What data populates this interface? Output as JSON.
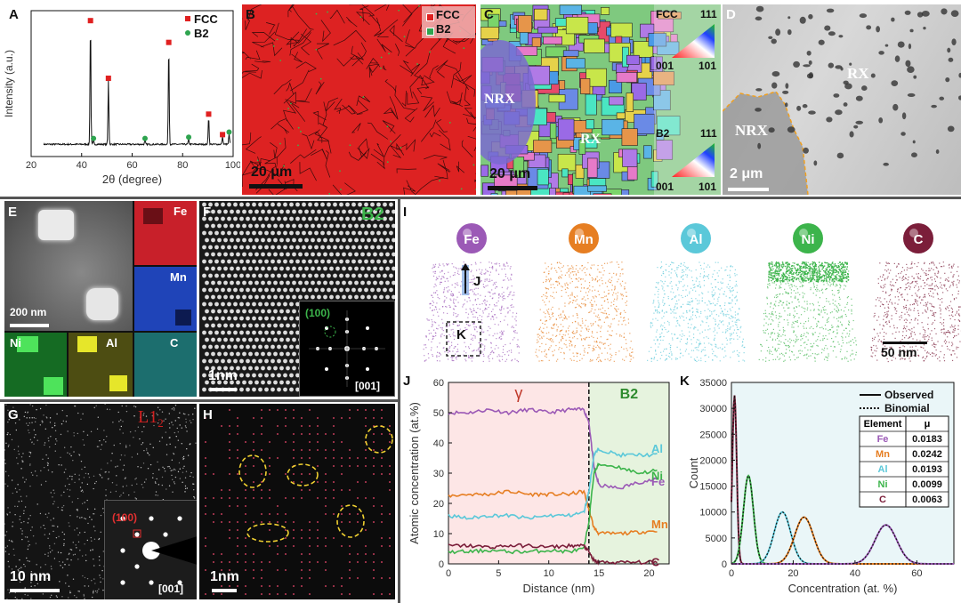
{
  "labels": {
    "A": "A",
    "B": "B",
    "C": "C",
    "D": "D",
    "E": "E",
    "F": "F",
    "G": "G",
    "H": "H",
    "I": "I",
    "J": "J",
    "K": "K"
  },
  "colors": {
    "fcc": "#e02020",
    "b2": "#2ea44f",
    "fe": "#9b59b6",
    "mn": "#e67e22",
    "al": "#5bc8d9",
    "ni": "#3cb44b",
    "c": "#7b1e3a"
  },
  "panel_b": {
    "legend": [
      "FCC",
      "B2"
    ],
    "scale": "20 μm"
  },
  "panel_c": {
    "nrx": "NRX",
    "rx": "RX",
    "fcc": "FCC",
    "b2": "B2",
    "ipf_top": "111",
    "ipf_left": "001",
    "ipf_right": "101",
    "scale": "20 μm"
  },
  "panel_d": {
    "rx": "RX",
    "nrx": "NRX",
    "scale": "2 μm"
  },
  "panel_e": {
    "scale": "200 nm",
    "elements": [
      "Fe",
      "Mn",
      "Ni",
      "Al",
      "C"
    ]
  },
  "panel_f": {
    "phase": "B2",
    "spot": "(100)",
    "zone": "[001]",
    "scale": "1nm"
  },
  "panel_g": {
    "phase": "L1",
    "phase_sub": "2",
    "spot": "(100)",
    "zone": "[001]",
    "scale": "10 nm"
  },
  "panel_h": {
    "scale": "1nm"
  },
  "panel_i": {
    "elements": [
      "Fe",
      "Mn",
      "Al",
      "Ni",
      "C"
    ],
    "arrow_label": "J",
    "box_label": "K",
    "scale": "50 nm"
  },
  "chart_data": [
    {
      "panel": "A",
      "type": "line",
      "xlabel": "2θ (degree)",
      "ylabel": "Intensity (a.u.)",
      "xlim": [
        20,
        100
      ],
      "xticks": [
        20,
        40,
        60,
        80,
        100
      ],
      "legend": [
        "FCC",
        "B2"
      ],
      "legend_position": "top-right",
      "fcc_peaks": [
        {
          "x": 43.5,
          "y": 0.95
        },
        {
          "x": 50.6,
          "y": 0.5
        },
        {
          "x": 74.5,
          "y": 0.78
        },
        {
          "x": 90.3,
          "y": 0.22
        },
        {
          "x": 95.8,
          "y": 0.06
        }
      ],
      "b2_peaks": [
        {
          "x": 44.7,
          "y": 0.03
        },
        {
          "x": 65.1,
          "y": 0.03
        },
        {
          "x": 82.4,
          "y": 0.04
        },
        {
          "x": 98.4,
          "y": 0.08
        }
      ]
    },
    {
      "panel": "J",
      "type": "line",
      "xlabel": "Distance (nm)",
      "ylabel": "Atomic concentration (at.%)",
      "xlim": [
        0,
        22
      ],
      "ylim": [
        0,
        60
      ],
      "xticks": [
        0,
        5,
        10,
        15,
        20
      ],
      "yticks": [
        0,
        10,
        20,
        30,
        40,
        50,
        60
      ],
      "regions": [
        {
          "label": "γ",
          "from": 0,
          "to": 14
        },
        {
          "label": "B2",
          "from": 14,
          "to": 22
        }
      ],
      "interface": 14,
      "series": [
        {
          "name": "Fe",
          "color": "#9b59b6",
          "x": [
            0,
            2,
            4,
            6,
            8,
            10,
            12,
            13.5,
            14,
            14.5,
            15,
            17,
            19,
            21
          ],
          "y": [
            50,
            50,
            51,
            50,
            51,
            50,
            51,
            51,
            47,
            32,
            26,
            25,
            27,
            28
          ]
        },
        {
          "name": "Mn",
          "color": "#e67e22",
          "x": [
            0,
            2,
            4,
            6,
            8,
            10,
            12,
            13.5,
            14,
            14.5,
            15,
            17,
            19,
            21
          ],
          "y": [
            22.5,
            23,
            23,
            24,
            23,
            23,
            23,
            24,
            18,
            12,
            10,
            10,
            10.5,
            11
          ]
        },
        {
          "name": "Al",
          "color": "#5bc8d9",
          "x": [
            0,
            2,
            4,
            6,
            8,
            10,
            12,
            13.5,
            14,
            14.5,
            15,
            17,
            19,
            21
          ],
          "y": [
            16,
            15,
            16,
            16,
            15,
            16,
            16,
            17,
            24,
            36,
            38,
            36,
            36,
            36
          ]
        },
        {
          "name": "Ni",
          "color": "#3cb44b",
          "x": [
            0,
            2,
            4,
            6,
            8,
            10,
            12,
            13.5,
            14,
            14.5,
            15,
            17,
            19,
            21
          ],
          "y": [
            4,
            4,
            4.5,
            4,
            4,
            4.5,
            4,
            5,
            14,
            30,
            33,
            32,
            30,
            31
          ]
        },
        {
          "name": "C",
          "color": "#7b1e3a",
          "x": [
            0,
            2,
            4,
            6,
            8,
            10,
            12,
            13.5,
            14,
            14.5,
            15,
            17,
            19,
            21
          ],
          "y": [
            6,
            6,
            5.5,
            6,
            6,
            5.5,
            6,
            6,
            4,
            1,
            0.5,
            0.5,
            0.5,
            0.5
          ]
        }
      ]
    },
    {
      "panel": "K",
      "type": "line",
      "xlabel": "Concentration (at. %)",
      "ylabel": "Count",
      "xlim": [
        0,
        72
      ],
      "ylim": [
        0,
        35000
      ],
      "xticks": [
        0,
        20,
        40,
        60
      ],
      "yticks": [
        0,
        5000,
        10000,
        15000,
        20000,
        25000,
        30000,
        35000
      ],
      "legend": [
        {
          "name": "Observed",
          "style": "solid"
        },
        {
          "name": "Binomial",
          "style": "dotted"
        }
      ],
      "table_header": [
        "Element",
        "μ"
      ],
      "table_rows": [
        [
          "Fe",
          "0.0183"
        ],
        [
          "Mn",
          "0.0242"
        ],
        [
          "Al",
          "0.0193"
        ],
        [
          "Ni",
          "0.0099"
        ],
        [
          "C",
          "0.0063"
        ]
      ],
      "series": [
        {
          "name": "C",
          "color": "#7b1e3a",
          "peak_x": 1.0,
          "peak_y": 32500,
          "width": 1.0
        },
        {
          "name": "Ni",
          "color": "#3cb44b",
          "peak_x": 5.5,
          "peak_y": 17000,
          "width": 2.3
        },
        {
          "name": "Al",
          "color": "#5bc8d9",
          "peak_x": 16.5,
          "peak_y": 10000,
          "width": 3.8
        },
        {
          "name": "Mn",
          "color": "#e67e22",
          "peak_x": 23.5,
          "peak_y": 9000,
          "width": 4.3
        },
        {
          "name": "Fe",
          "color": "#9b59b6",
          "peak_x": 50.0,
          "peak_y": 7500,
          "width": 5.0
        }
      ]
    }
  ]
}
